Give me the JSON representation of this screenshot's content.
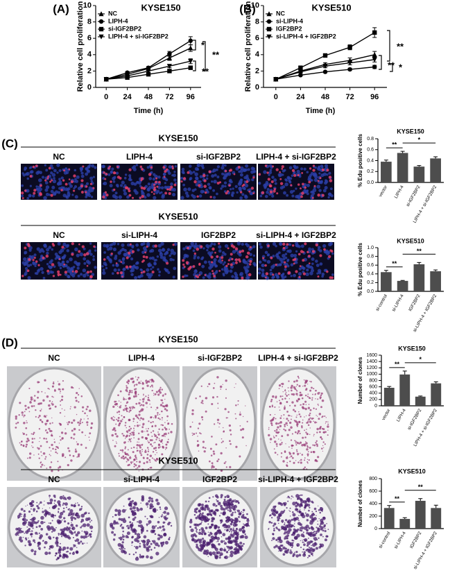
{
  "figure": {
    "panel_labels": [
      "(A)",
      "(B)",
      "(C)",
      "(D)"
    ],
    "image_rows": [
      {
        "title": "KYSE150",
        "labels": [
          "NC",
          "LIPH-4",
          "si-IGF2BP2",
          "LIPH-4 + si-IGF2BP2"
        ]
      },
      {
        "title": "KYSE510",
        "labels": [
          "NC",
          "si-LIPH-4",
          "IGF2BP2",
          "si-LIPH-4 + IGF2BP2"
        ]
      },
      {
        "title": "KYSE150",
        "labels": [
          "NC",
          "LIPH-4",
          "si-IGF2BP2",
          "LIPH-4 + si-IGF2BP2"
        ]
      },
      {
        "title": "KYSE510",
        "labels": [
          "NC",
          "si-LIPH-4",
          "IGF2BP2",
          "si-LIPH-4 + IGF2BP2"
        ]
      }
    ]
  },
  "chart_data": [
    {
      "type": "line",
      "title": "KYSE150",
      "xlabel": "Time (h)",
      "ylabel": "Relative cell proliferation",
      "x": [
        0,
        24,
        48,
        72,
        96
      ],
      "xlim": [
        -12,
        108
      ],
      "xticks": [
        0,
        24,
        48,
        72,
        96
      ],
      "ylim": [
        0,
        10
      ],
      "yticks": [
        0,
        2,
        4,
        6,
        8,
        10
      ],
      "grid": false,
      "legend": "upper left",
      "series": [
        {
          "name": "NC",
          "color": "#000000",
          "marker": "triangle-up",
          "values": [
            1,
            1.6,
            2.3,
            3.6,
            4.8
          ],
          "errors": [
            0.05,
            0.15,
            0.15,
            0.3,
            0.4
          ]
        },
        {
          "name": "LIPH-4",
          "color": "#000000",
          "marker": "circle",
          "values": [
            1,
            1.8,
            2.4,
            4.1,
            5.7
          ],
          "errors": [
            0.05,
            0.15,
            0.15,
            0.3,
            0.5
          ]
        },
        {
          "name": "si-IGF2BP2",
          "color": "#000000",
          "marker": "square",
          "values": [
            1,
            1.2,
            1.6,
            2.0,
            2.4
          ],
          "errors": [
            0.05,
            0.1,
            0.1,
            0.15,
            0.2
          ]
        },
        {
          "name": "LIPH-4 + si-IGF2BP2",
          "color": "#000000",
          "marker": "triangle-down",
          "values": [
            1,
            1.4,
            2.0,
            2.6,
            3.2
          ],
          "errors": [
            0.05,
            0.1,
            0.15,
            0.2,
            0.3
          ]
        }
      ],
      "annotations": [
        "*",
        "**",
        "**"
      ]
    },
    {
      "type": "line",
      "title": "KYSE510",
      "xlabel": "Time (h)",
      "ylabel": "Relative cell proliferation",
      "x": [
        0,
        24,
        48,
        72,
        96
      ],
      "xlim": [
        -12,
        108
      ],
      "xticks": [
        0,
        24,
        48,
        72,
        96
      ],
      "ylim": [
        0,
        10
      ],
      "yticks": [
        0,
        2,
        4,
        6,
        8,
        10
      ],
      "grid": false,
      "legend": "upper left",
      "series": [
        {
          "name": "NC",
          "color": "#000000",
          "marker": "triangle-up",
          "values": [
            1,
            2.0,
            2.8,
            3.3,
            4.0
          ],
          "errors": [
            0.05,
            0.15,
            0.2,
            0.3,
            0.4
          ]
        },
        {
          "name": "si-LIPH-4",
          "color": "#000000",
          "marker": "circle",
          "values": [
            1,
            1.5,
            1.9,
            2.2,
            2.5
          ],
          "errors": [
            0.05,
            0.1,
            0.1,
            0.15,
            0.2
          ]
        },
        {
          "name": "IGF2BP2",
          "color": "#000000",
          "marker": "square",
          "values": [
            1,
            2.4,
            3.9,
            4.9,
            6.7
          ],
          "errors": [
            0.05,
            0.15,
            0.2,
            0.3,
            0.6
          ]
        },
        {
          "name": "si-LIPH-4 + IGF2BP2",
          "color": "#000000",
          "marker": "triangle-down",
          "values": [
            1,
            1.9,
            2.6,
            3.0,
            3.4
          ],
          "errors": [
            0.05,
            0.1,
            0.2,
            0.25,
            0.3
          ]
        }
      ],
      "annotations": [
        "**",
        "**",
        "*"
      ]
    },
    {
      "type": "bar",
      "title": "KYSE150",
      "ylabel": "% Edu positive cells",
      "color": "#4d4d4d",
      "categories": [
        "vector",
        "LIPH-4",
        "si-IGF2BP2",
        "LIPH-4 + si-IGF2BP2"
      ],
      "values": [
        0.38,
        0.54,
        0.29,
        0.44
      ],
      "errors": [
        0.03,
        0.03,
        0.02,
        0.03
      ],
      "ylim": [
        0,
        0.8
      ],
      "yticks": [
        {
          "value": 0,
          "label": "0.0"
        },
        0.2,
        0.4,
        0.6,
        0.8
      ],
      "grid": false,
      "annotations": [
        "**",
        "*"
      ]
    },
    {
      "type": "bar",
      "title": "KYSE510",
      "ylabel": "% Edu positive cells",
      "color": "#4d4d4d",
      "categories": [
        "si-control",
        "si-LIPH-4",
        "IGF2BP2",
        "si-LIPH-4 + IGF2BP2"
      ],
      "values": [
        0.44,
        0.24,
        0.62,
        0.46
      ],
      "errors": [
        0.04,
        0.01,
        0.04,
        0.03
      ],
      "ylim": [
        0,
        1.0
      ],
      "yticks": [
        {
          "value": 0,
          "label": "0.0"
        },
        0.2,
        0.4,
        0.6,
        0.8,
        {
          "value": 1.0,
          "label": "1.0"
        }
      ],
      "grid": false,
      "annotations": [
        "**",
        "**"
      ]
    },
    {
      "type": "bar",
      "title": "KYSE150",
      "ylabel": "Number of clones",
      "color": "#4d4d4d",
      "categories": [
        "vector",
        "LIPH-4",
        "si-IGF2BP2",
        "LIPH-4 + si-IGF2BP2"
      ],
      "values": [
        570,
        990,
        290,
        710
      ],
      "errors": [
        40,
        110,
        20,
        50
      ],
      "ylim": [
        0,
        1600
      ],
      "yticks": [
        0,
        200,
        400,
        600,
        800,
        1000,
        1200,
        1400,
        1600
      ],
      "grid": false,
      "annotations": [
        "**",
        "*"
      ]
    },
    {
      "type": "bar",
      "title": "KYSE510",
      "ylabel": "Number of clones",
      "color": "#4d4d4d",
      "categories": [
        "si-control",
        "si-LIPH-4",
        "IGF2BP2",
        "si-LIPH-4 + IGF2BP2"
      ],
      "values": [
        330,
        155,
        445,
        330
      ],
      "errors": [
        40,
        20,
        35,
        45
      ],
      "ylim": [
        0,
        800
      ],
      "yticks": [
        0,
        200,
        400,
        600,
        800
      ],
      "grid": false,
      "annotations": [
        "**",
        "**"
      ]
    }
  ]
}
